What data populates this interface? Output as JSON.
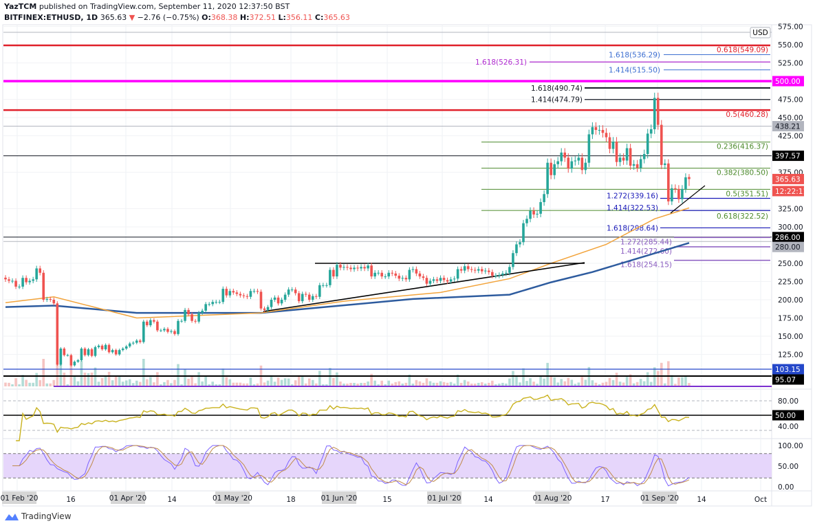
{
  "header": {
    "author": "YazTCM",
    "published": "published on TradingView.com, September 11, 2020 12:37:50 BST",
    "symbol": "BITFINEX:ETHUSD, 1D",
    "last": "365.63",
    "change": "−2.76 (−0.75%)",
    "o_label": "O:",
    "o": "368.38",
    "h_label": "H:",
    "h": "372.51",
    "l_label": "L:",
    "l": "356.11",
    "c_label": "C:",
    "c": "365.63",
    "down_arrow_icon": "triangle-down"
  },
  "currency": "USD",
  "footer": {
    "brand": "TradingView",
    "logo_icon": "tradingview-cloud-logo"
  },
  "colors": {
    "up": "#26a69a",
    "down": "#ef5350",
    "fib_red": "#e0202a",
    "magenta": "#ff00ff",
    "green": "#4c8a2b",
    "blue": "#3d6fd1",
    "navy": "#1a1ab8",
    "purple": "#8a5cc0",
    "ma_fast": "#f2a33a",
    "ma_slow": "#2d5b9e",
    "rsi": "#c9b21e",
    "stoch_k": "#7b61ff",
    "stoch_d": "#c08a4a"
  },
  "chart_data": {
    "type": "candlestick",
    "start_date": "2020-02-26",
    "end_date": "2020-09-11",
    "closes": [
      228,
      226,
      226,
      218,
      218,
      230,
      224,
      226,
      228,
      243,
      237,
      200,
      201,
      200,
      195,
      111,
      133,
      124,
      124,
      110,
      115,
      117,
      133,
      124,
      132,
      123,
      135,
      137,
      132,
      138,
      128,
      131,
      125,
      131,
      133,
      136,
      140,
      141,
      144,
      142,
      170,
      165,
      172,
      170,
      158,
      158,
      160,
      156,
      157,
      153,
      171,
      171,
      186,
      180,
      171,
      170,
      182,
      185,
      194,
      194,
      197,
      197,
      197,
      215,
      206,
      212,
      210,
      208,
      206,
      205,
      204,
      212,
      212,
      211,
      188,
      186,
      190,
      200,
      203,
      195,
      200,
      207,
      214,
      214,
      209,
      198,
      208,
      207,
      200,
      205,
      204,
      220,
      220,
      220,
      241,
      232,
      248,
      244,
      245,
      244,
      242,
      244,
      243,
      245,
      243,
      247,
      232,
      237,
      237,
      232,
      232,
      237,
      236,
      233,
      229,
      230,
      228,
      241,
      242,
      236,
      232,
      230,
      222,
      226,
      228,
      226,
      230,
      227,
      225,
      228,
      229,
      242,
      240,
      246,
      242,
      241,
      240,
      242,
      239,
      240,
      238,
      233,
      233,
      234,
      236,
      237,
      245,
      264,
      276,
      279,
      305,
      311,
      322,
      317,
      318,
      334,
      345,
      388,
      371,
      386,
      390,
      402,
      395,
      380,
      390,
      391,
      395,
      378,
      388,
      427,
      437,
      433,
      433,
      429,
      423,
      407,
      417,
      389,
      395,
      391,
      408,
      384,
      386,
      381,
      393,
      400,
      428,
      434,
      477,
      440,
      385,
      387,
      335,
      353,
      352,
      338,
      352,
      368,
      365.63
    ],
    "last_candle": {
      "open": 368.38,
      "high": 372.51,
      "low": 356.11,
      "close": 365.63
    },
    "ma_fast": [
      [
        "2020-02-26",
        196
      ],
      [
        "2020-03-11",
        204
      ],
      [
        "2020-04-04",
        175
      ],
      [
        "2020-05-10",
        182
      ],
      [
        "2020-06-03",
        198
      ],
      [
        "2020-07-01",
        210
      ],
      [
        "2020-07-21",
        229
      ],
      [
        "2020-08-02",
        250
      ],
      [
        "2020-08-18",
        276
      ],
      [
        "2020-09-01",
        311
      ],
      [
        "2020-09-11",
        326
      ]
    ],
    "ma_slow": [
      [
        "2020-02-26",
        190
      ],
      [
        "2020-03-11",
        192
      ],
      [
        "2020-04-04",
        182
      ],
      [
        "2020-05-10",
        182
      ],
      [
        "2020-06-23",
        201
      ],
      [
        "2020-07-21",
        207
      ],
      [
        "2020-08-02",
        224
      ],
      [
        "2020-08-14",
        238
      ],
      [
        "2020-09-11",
        278
      ]
    ],
    "y_ticks": [
      "575.00",
      "550.00",
      "525.00",
      "475.00",
      "450.00",
      "425.00",
      "375.00",
      "325.00",
      "300.00",
      "250.00",
      "225.00",
      "200.00",
      "175.00",
      "150.00",
      "125.00"
    ],
    "y_tick_values": [
      575,
      550,
      525,
      475,
      450,
      425,
      375,
      325,
      300,
      250,
      225,
      200,
      175,
      150,
      125
    ],
    "x_labels_highlighted": [
      "01 Feb '20",
      "01 Apr '20",
      "01 May '20",
      "01 Jun '20",
      "01 Jul '20",
      "01 Aug '20",
      "01 Sep '20"
    ],
    "x_labels": [
      "16",
      "14",
      "18",
      "15",
      "14",
      "17",
      "14",
      "Oct"
    ],
    "fib_levels": [
      {
        "label": "0.618(549.09)",
        "price": 549.09,
        "color": "#e0202a"
      },
      {
        "label": "1.618(536.29)",
        "price": 536.29,
        "color": "#3d6fd1"
      },
      {
        "label": "1.618(526.31)",
        "price": 526.31,
        "color": "#b02ad0"
      },
      {
        "label": "1.414(515.50)",
        "price": 515.5,
        "color": "#3d6fd1"
      },
      {
        "label": "1.618(490.74)",
        "price": 490.74,
        "color": "#131722"
      },
      {
        "label": "1.414(474.79)",
        "price": 474.79,
        "color": "#131722"
      },
      {
        "label": "0.5(460.28)",
        "price": 460.28,
        "color": "#e0202a"
      },
      {
        "label": "0.236(416.37)",
        "price": 416.37,
        "color": "#4c8a2b"
      },
      {
        "label": "0.382(380.50)",
        "price": 380.5,
        "color": "#4c8a2b"
      },
      {
        "label": "0.5(351.51)",
        "price": 351.51,
        "color": "#4c8a2b"
      },
      {
        "label": "0.618(322.52)",
        "price": 322.52,
        "color": "#4c8a2b"
      },
      {
        "label": "1.272(339.16)",
        "price": 339.16,
        "color": "#1a1ab8"
      },
      {
        "label": "1.414(322.53)",
        "price": 322.53,
        "color": "#1a1ab8"
      },
      {
        "label": "1.618(298.64)",
        "price": 298.64,
        "color": "#1a1ab8"
      },
      {
        "label": "1.272(285.44)",
        "price": 285.44,
        "color": "#8a5cc0"
      },
      {
        "label": "1.414(272.60)",
        "price": 272.6,
        "color": "#8a5cc0"
      },
      {
        "label": "1.618(254.15)",
        "price": 254.15,
        "color": "#8a5cc0"
      }
    ],
    "price_tags": [
      {
        "text": "500.00",
        "price": 500,
        "bg": "#ff00ff",
        "fg": "#ffffff"
      },
      {
        "text": "438.21",
        "price": 438.21,
        "bg": "#b2b5be",
        "fg": "#131722"
      },
      {
        "text": "397.57",
        "price": 397.57,
        "bg": "#000000",
        "fg": "#ffffff"
      },
      {
        "text": "365.63",
        "price": 365.63,
        "bg": "#ef5350",
        "fg": "#ffffff"
      },
      {
        "text": "12:22:11",
        "price": 351,
        "bg": "#ef5350",
        "fg": "#ffffff"
      },
      {
        "text": "286.00",
        "price": 286,
        "bg": "#000000",
        "fg": "#ffffff"
      },
      {
        "text": "280.00",
        "price": 280,
        "bg": "#b2b5be",
        "fg": "#131722"
      }
    ],
    "volume_levels": [
      {
        "text": "103.15",
        "bg": "#2447c9",
        "fg": "#ffffff"
      },
      {
        "text": "95.07",
        "bg": "#000000",
        "fg": "#ffffff"
      }
    ],
    "rsi": {
      "ticks": [
        "80.00",
        "40.00"
      ],
      "level_tag": "50.00"
    },
    "stoch_rsi": {
      "ticks": [
        "100.00",
        "50.00",
        "0.00"
      ],
      "band": [
        20,
        80
      ]
    }
  }
}
